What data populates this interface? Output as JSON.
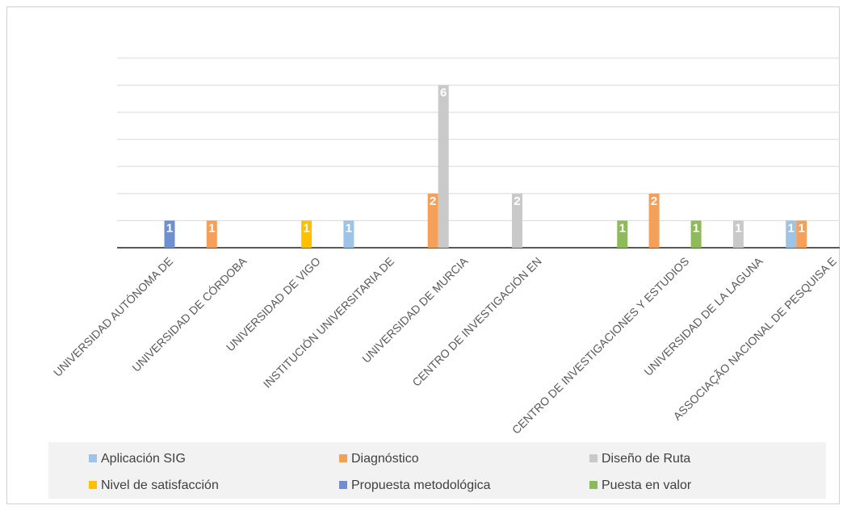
{
  "chart_data": {
    "type": "bar",
    "categories": [
      "UNIVERSIDAD AUTÓNOMA DE",
      "UNIVERSIDAD DE CÓRDOBA",
      "UNIVERSIDAD DE VIGO",
      "INSTITUCIÓN UNIVERSITARIA DE",
      "UNIVERSIDAD DE MURCIA",
      "CENTRO DE INVESTIGACIÓN EN",
      null,
      "CENTRO DE INVESTIGACIONES Y ESTUDIOS",
      "UNIVERSIDAD DE LA LAGUNA",
      "ASSOCIAÇÃO NACIONAL DE PESQUISA E"
    ],
    "series": [
      {
        "name": "Aplicación SIG",
        "color": "#9dc3e6",
        "values": [
          null,
          null,
          null,
          1,
          null,
          null,
          null,
          null,
          null,
          1
        ]
      },
      {
        "name": "Diagnóstico",
        "color": "#f4a05a",
        "values": [
          null,
          1,
          null,
          null,
          2,
          null,
          null,
          2,
          null,
          1
        ]
      },
      {
        "name": "Diseño de Ruta",
        "color": "#c9c9c9",
        "values": [
          null,
          null,
          null,
          null,
          6,
          2,
          null,
          null,
          1,
          null
        ]
      },
      {
        "name": "Nivel de satisfacción",
        "color": "#ffc000",
        "values": [
          null,
          null,
          1,
          null,
          null,
          null,
          null,
          null,
          null,
          null
        ]
      },
      {
        "name": "Propuesta metodológica",
        "color": "#6f8fcf",
        "values": [
          1,
          null,
          null,
          null,
          null,
          null,
          null,
          null,
          null,
          null
        ]
      },
      {
        "name": "Puesta en valor",
        "color": "#8fba5a",
        "values": [
          null,
          null,
          null,
          null,
          null,
          null,
          1,
          1,
          null,
          null
        ]
      }
    ],
    "ylim": [
      0,
      7
    ],
    "yticks": [
      0,
      1,
      2,
      3,
      4,
      5,
      6,
      7
    ],
    "grid": true,
    "legend": "bottom"
  }
}
